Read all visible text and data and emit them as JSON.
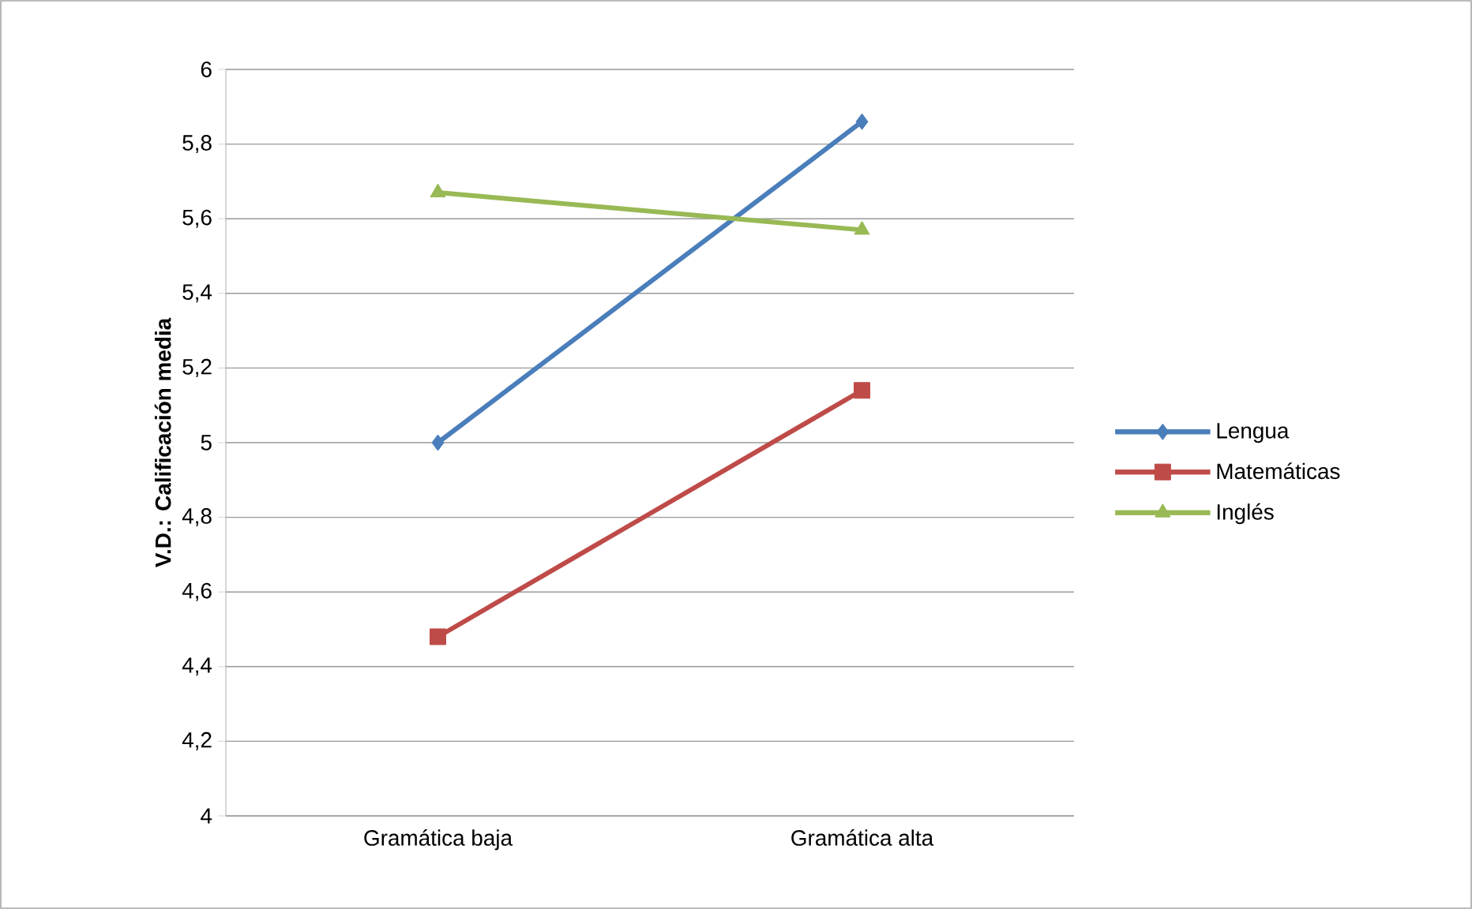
{
  "chart_data": {
    "type": "line",
    "ylabel": "V.D.: Calificación media",
    "categories": [
      "Gramática baja",
      "Gramática alta"
    ],
    "series": [
      {
        "name": "Lengua",
        "color": "#4a7ebb",
        "marker": "diamond",
        "values": [
          5.0,
          5.86
        ]
      },
      {
        "name": "Matemáticas",
        "color": "#be4b48",
        "marker": "square",
        "values": [
          4.48,
          5.14
        ]
      },
      {
        "name": "Inglés",
        "color": "#98b954",
        "marker": "triangle",
        "values": [
          5.67,
          5.57
        ]
      }
    ],
    "ylim": [
      4,
      6
    ],
    "yticks": [
      4,
      {
        "value": 4.2,
        "label": "4,2"
      },
      {
        "value": 4.4,
        "label": "4,4"
      },
      {
        "value": 4.6,
        "label": "4,6"
      },
      {
        "value": 4.8,
        "label": "4,8"
      },
      5,
      {
        "value": 5.2,
        "label": "5,2"
      },
      {
        "value": 5.4,
        "label": "5,4"
      },
      {
        "value": 5.6,
        "label": "5,6"
      },
      {
        "value": 5.8,
        "label": "5,8"
      },
      6
    ],
    "grid": "y",
    "legend": "right",
    "line_style": "solid"
  }
}
